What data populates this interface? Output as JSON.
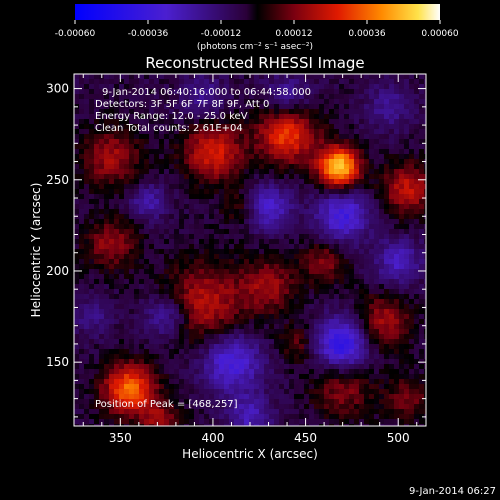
{
  "colorbar": {
    "ticks": [
      -0.0006,
      -0.00036,
      -0.00012,
      0.00012,
      0.00036,
      0.0006
    ],
    "tick_labels": [
      "-0.00060",
      "-0.00036",
      "-0.00012",
      "0.00012",
      "0.00036",
      "0.00060"
    ],
    "units_label": "(photons cm⁻² s⁻¹ asec⁻²)",
    "range": [
      -0.0006,
      0.0006
    ]
  },
  "chart_data": {
    "type": "heatmap",
    "title": "Reconstructed RHESSI Image",
    "xlabel": "Heliocentric X (arcsec)",
    "ylabel": "Heliocentric Y (arcsec)",
    "xlim": [
      325,
      515
    ],
    "ylim": [
      115,
      308
    ],
    "x_ticks": [
      350,
      400,
      450,
      500
    ],
    "y_ticks": [
      150,
      200,
      250,
      300
    ],
    "x_tick_labels": [
      "350",
      "400",
      "450",
      "500"
    ],
    "y_tick_labels": [
      "150",
      "200",
      "250",
      "300"
    ],
    "annotations": [
      "9-Jan-2014 06:40:16.000 to 06:44:58.000",
      "Detectors: 3F 5F 6F 7F 8F 9F, Att 0",
      "Energy Range: 12.0 - 25.0 keV",
      "Clean     Total counts: 2.61E+04"
    ],
    "peak_label": "Position of Peak = [468,257]",
    "peak": [
      468,
      257
    ],
    "blobs": [
      {
        "x": 468,
        "y": 257,
        "v": 0.00058,
        "r": 11
      },
      {
        "x": 440,
        "y": 275,
        "v": 0.00036,
        "r": 16
      },
      {
        "x": 400,
        "y": 265,
        "v": 0.0003,
        "r": 16
      },
      {
        "x": 345,
        "y": 262,
        "v": 0.00022,
        "r": 16
      },
      {
        "x": 505,
        "y": 245,
        "v": 0.00026,
        "r": 14
      },
      {
        "x": 395,
        "y": 182,
        "v": 0.00025,
        "r": 22
      },
      {
        "x": 430,
        "y": 192,
        "v": 0.0002,
        "r": 15
      },
      {
        "x": 492,
        "y": 172,
        "v": 0.00022,
        "r": 15
      },
      {
        "x": 460,
        "y": 205,
        "v": 0.00018,
        "r": 12
      },
      {
        "x": 355,
        "y": 135,
        "v": 0.00042,
        "r": 14
      },
      {
        "x": 345,
        "y": 215,
        "v": 0.0002,
        "r": 14
      },
      {
        "x": 470,
        "y": 135,
        "v": 0.00018,
        "r": 16
      },
      {
        "x": 505,
        "y": 130,
        "v": 0.00016,
        "r": 12
      },
      {
        "x": 445,
        "y": 160,
        "v": 0.00014,
        "r": 10
      },
      {
        "x": 415,
        "y": 235,
        "v": 0.00012,
        "r": 10
      },
      {
        "x": 372,
        "y": 118,
        "v": 0.0002,
        "r": 10
      },
      {
        "x": 470,
        "y": 230,
        "v": -0.0003,
        "r": 14
      },
      {
        "x": 470,
        "y": 160,
        "v": -0.00038,
        "r": 14
      },
      {
        "x": 410,
        "y": 150,
        "v": -0.0003,
        "r": 16
      },
      {
        "x": 365,
        "y": 238,
        "v": -0.00018,
        "r": 10
      },
      {
        "x": 375,
        "y": 175,
        "v": -0.00022,
        "r": 12
      },
      {
        "x": 430,
        "y": 235,
        "v": -0.00026,
        "r": 12
      },
      {
        "x": 440,
        "y": 295,
        "v": -0.00018,
        "r": 12
      },
      {
        "x": 500,
        "y": 205,
        "v": -0.00022,
        "r": 12
      },
      {
        "x": 495,
        "y": 290,
        "v": -0.00014,
        "r": 12
      },
      {
        "x": 420,
        "y": 120,
        "v": -0.0002,
        "r": 12
      },
      {
        "x": 335,
        "y": 175,
        "v": -0.00012,
        "r": 10
      },
      {
        "x": 395,
        "y": 295,
        "v": -0.00014,
        "r": 12
      }
    ]
  },
  "footer": {
    "date_stamp": "9-Jan-2014 06:27"
  }
}
